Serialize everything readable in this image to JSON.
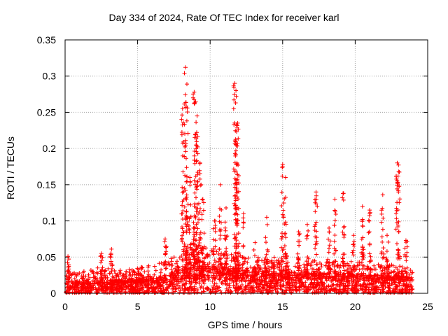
{
  "chart_data": {
    "type": "scatter",
    "title": "Day 334 of 2024, Rate Of TEC Index for receiver karl",
    "xlabel": "GPS time / hours",
    "ylabel": "ROTI / TECUs",
    "xlim": [
      0,
      25
    ],
    "ylim": [
      0,
      0.35
    ],
    "xticks": [
      0,
      5,
      10,
      15,
      20,
      25
    ],
    "yticks": [
      0,
      0.05,
      0.1,
      0.15,
      0.2,
      0.25,
      0.3,
      0.35
    ],
    "xtick_labels": [
      "0",
      "5",
      "10",
      "15",
      "20",
      "25"
    ],
    "ytick_labels": [
      "0",
      "0.05",
      "0.1",
      "0.15",
      "0.2",
      "0.25",
      "0.3",
      "0.35"
    ],
    "grid": true,
    "marker": "+",
    "series": [
      {
        "name": "karl",
        "color": "#ff0000",
        "baseline_profile": {
          "x": [
            0,
            1,
            2,
            3,
            4,
            5,
            6,
            7,
            8,
            9,
            10,
            11,
            12,
            13,
            14,
            15,
            16,
            17,
            18,
            19,
            20,
            21,
            22,
            23,
            24
          ],
          "typical": [
            0.012,
            0.012,
            0.012,
            0.013,
            0.013,
            0.014,
            0.015,
            0.018,
            0.025,
            0.035,
            0.028,
            0.025,
            0.025,
            0.022,
            0.022,
            0.022,
            0.02,
            0.02,
            0.02,
            0.02,
            0.02,
            0.018,
            0.018,
            0.018,
            0.015
          ],
          "upper": [
            0.03,
            0.03,
            0.035,
            0.035,
            0.032,
            0.035,
            0.04,
            0.045,
            0.055,
            0.075,
            0.06,
            0.055,
            0.055,
            0.05,
            0.05,
            0.05,
            0.045,
            0.045,
            0.045,
            0.045,
            0.045,
            0.04,
            0.04,
            0.04,
            0.035
          ]
        },
        "peaks": [
          {
            "x": 0.2,
            "y": 0.051
          },
          {
            "x": 2.5,
            "y": 0.055
          },
          {
            "x": 3.2,
            "y": 0.061
          },
          {
            "x": 6.9,
            "y": 0.075
          },
          {
            "x": 8.1,
            "y": 0.255
          },
          {
            "x": 8.3,
            "y": 0.312
          },
          {
            "x": 8.4,
            "y": 0.289
          },
          {
            "x": 8.6,
            "y": 0.16
          },
          {
            "x": 8.9,
            "y": 0.278
          },
          {
            "x": 9.0,
            "y": 0.265
          },
          {
            "x": 9.1,
            "y": 0.245
          },
          {
            "x": 9.3,
            "y": 0.18
          },
          {
            "x": 9.5,
            "y": 0.13
          },
          {
            "x": 10.3,
            "y": 0.1
          },
          {
            "x": 10.7,
            "y": 0.15
          },
          {
            "x": 11.1,
            "y": 0.118
          },
          {
            "x": 11.7,
            "y": 0.29
          },
          {
            "x": 11.8,
            "y": 0.272
          },
          {
            "x": 11.9,
            "y": 0.235
          },
          {
            "x": 11.85,
            "y": 0.18
          },
          {
            "x": 12.3,
            "y": 0.11
          },
          {
            "x": 13.1,
            "y": 0.07
          },
          {
            "x": 13.9,
            "y": 0.105
          },
          {
            "x": 15.0,
            "y": 0.178
          },
          {
            "x": 15.2,
            "y": 0.16
          },
          {
            "x": 16.1,
            "y": 0.085
          },
          {
            "x": 16.7,
            "y": 0.095
          },
          {
            "x": 17.3,
            "y": 0.14
          },
          {
            "x": 18.2,
            "y": 0.09
          },
          {
            "x": 18.6,
            "y": 0.13
          },
          {
            "x": 19.2,
            "y": 0.138
          },
          {
            "x": 19.9,
            "y": 0.08
          },
          {
            "x": 20.5,
            "y": 0.12
          },
          {
            "x": 21.0,
            "y": 0.115
          },
          {
            "x": 21.9,
            "y": 0.136
          },
          {
            "x": 22.2,
            "y": 0.08
          },
          {
            "x": 22.9,
            "y": 0.18
          },
          {
            "x": 23.0,
            "y": 0.168
          },
          {
            "x": 23.5,
            "y": 0.073
          }
        ]
      }
    ]
  }
}
